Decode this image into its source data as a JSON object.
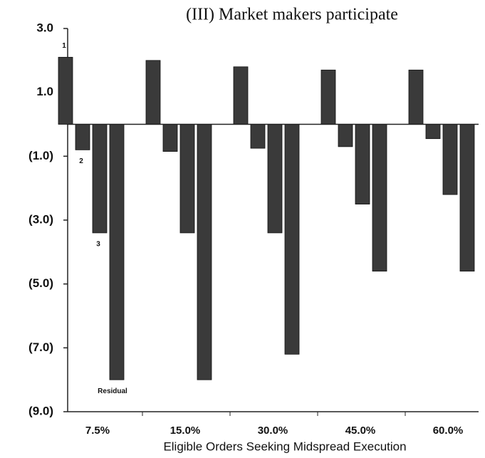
{
  "chart_data": {
    "type": "bar",
    "title": "(III) Market makers participate",
    "x_label": "Eligible Orders Seeking Midspread Execution",
    "categories": [
      "7.5%",
      "15.0%",
      "30.0%",
      "45.0%",
      "60.0%"
    ],
    "series": [
      {
        "name": "1",
        "color": "#3a3a3a",
        "values": [
          2.1,
          2.0,
          1.8,
          1.7,
          1.7
        ]
      },
      {
        "name": "2",
        "color": "#3a3a3a",
        "values": [
          -0.8,
          -0.85,
          -0.75,
          -0.7,
          -0.45
        ]
      },
      {
        "name": "3",
        "color": "#3a3a3a",
        "values": [
          -3.4,
          -3.4,
          -3.4,
          -2.5,
          -2.2
        ]
      },
      {
        "name": "Residual",
        "color": "#3a3a3a",
        "values": [
          -8.0,
          -8.0,
          -7.2,
          -4.6,
          -4.6
        ]
      }
    ],
    "ylim": [
      -9,
      3
    ],
    "yticks": [
      {
        "value": 3,
        "label": "3.0"
      },
      {
        "value": 1,
        "label": "1.0"
      },
      {
        "value": -1,
        "label": "(1.0)"
      },
      {
        "value": -3,
        "label": "(3.0)"
      },
      {
        "value": -5,
        "label": "(5.0)"
      },
      {
        "value": -7,
        "label": "(7.0)"
      },
      {
        "value": -9,
        "label": "(9.0)"
      }
    ]
  }
}
